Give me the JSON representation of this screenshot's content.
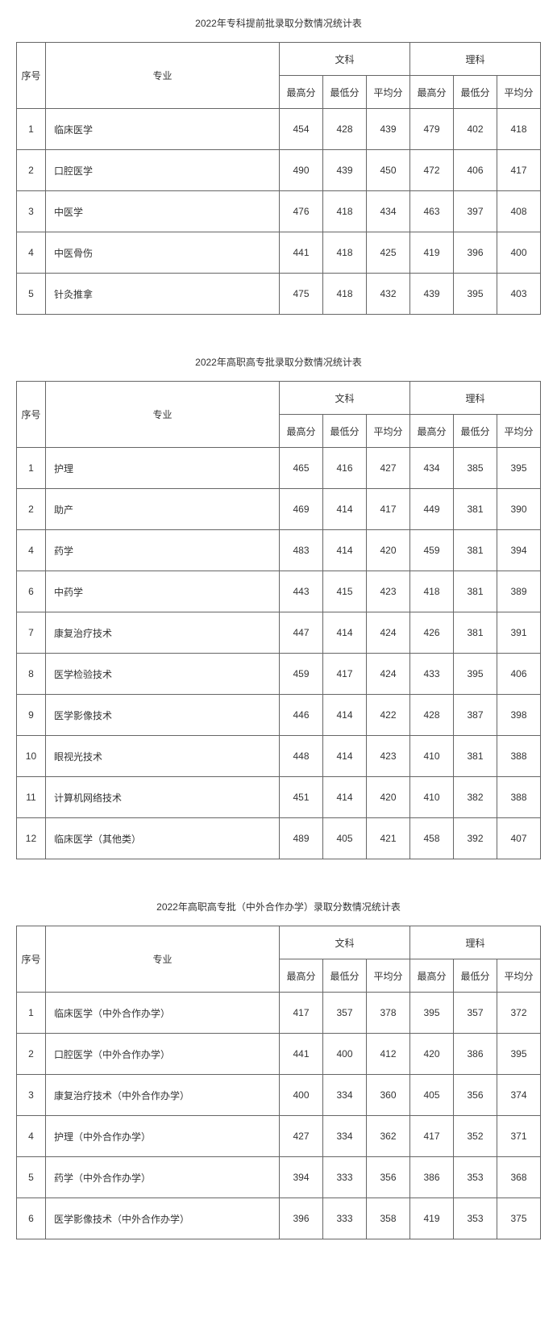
{
  "tables": [
    {
      "title": "2022年专科提前批录取分数情况统计表",
      "header": {
        "idx": "序号",
        "major": "专业",
        "group1": "文科",
        "group2": "理科",
        "sub": [
          "最高分",
          "最低分",
          "平均分",
          "最高分",
          "最低分",
          "平均分"
        ]
      },
      "rows": [
        {
          "idx": "1",
          "major": "临床医学",
          "v": [
            "454",
            "428",
            "439",
            "479",
            "402",
            "418"
          ]
        },
        {
          "idx": "2",
          "major": "口腔医学",
          "v": [
            "490",
            "439",
            "450",
            "472",
            "406",
            "417"
          ]
        },
        {
          "idx": "3",
          "major": "中医学",
          "v": [
            "476",
            "418",
            "434",
            "463",
            "397",
            "408"
          ]
        },
        {
          "idx": "4",
          "major": "中医骨伤",
          "v": [
            "441",
            "418",
            "425",
            "419",
            "396",
            "400"
          ]
        },
        {
          "idx": "5",
          "major": "针灸推拿",
          "v": [
            "475",
            "418",
            "432",
            "439",
            "395",
            "403"
          ]
        }
      ]
    },
    {
      "title": "2022年高职高专批录取分数情况统计表",
      "header": {
        "idx": "序号",
        "major": "专业",
        "group1": "文科",
        "group2": "理科",
        "sub": [
          "最高分",
          "最低分",
          "平均分",
          "最高分",
          "最低分",
          "平均分"
        ]
      },
      "rows": [
        {
          "idx": "1",
          "major": "护理",
          "v": [
            "465",
            "416",
            "427",
            "434",
            "385",
            "395"
          ]
        },
        {
          "idx": "2",
          "major": "助产",
          "v": [
            "469",
            "414",
            "417",
            "449",
            "381",
            "390"
          ]
        },
        {
          "idx": "4",
          "major": "药学",
          "v": [
            "483",
            "414",
            "420",
            "459",
            "381",
            "394"
          ]
        },
        {
          "idx": "6",
          "major": "中药学",
          "v": [
            "443",
            "415",
            "423",
            "418",
            "381",
            "389"
          ]
        },
        {
          "idx": "7",
          "major": "康复治疗技术",
          "v": [
            "447",
            "414",
            "424",
            "426",
            "381",
            "391"
          ]
        },
        {
          "idx": "8",
          "major": "医学检验技术",
          "v": [
            "459",
            "417",
            "424",
            "433",
            "395",
            "406"
          ]
        },
        {
          "idx": "9",
          "major": "医学影像技术",
          "v": [
            "446",
            "414",
            "422",
            "428",
            "387",
            "398"
          ]
        },
        {
          "idx": "10",
          "major": "眼视光技术",
          "v": [
            "448",
            "414",
            "423",
            "410",
            "381",
            "388"
          ]
        },
        {
          "idx": "11",
          "major": "计算机网络技术",
          "v": [
            "451",
            "414",
            "420",
            "410",
            "382",
            "388"
          ]
        },
        {
          "idx": "12",
          "major": "临床医学（其他类）",
          "v": [
            "489",
            "405",
            "421",
            "458",
            "392",
            "407"
          ]
        }
      ]
    },
    {
      "title": "2022年高职高专批（中外合作办学）录取分数情况统计表",
      "header": {
        "idx": "序号",
        "major": "专业",
        "group1": "文科",
        "group2": "理科",
        "sub": [
          "最高分",
          "最低分",
          "平均分",
          "最高分",
          "最低分",
          "平均分"
        ]
      },
      "rows": [
        {
          "idx": "1",
          "major": "临床医学（中外合作办学）",
          "v": [
            "417",
            "357",
            "378",
            "395",
            "357",
            "372"
          ]
        },
        {
          "idx": "2",
          "major": "口腔医学（中外合作办学）",
          "v": [
            "441",
            "400",
            "412",
            "420",
            "386",
            "395"
          ]
        },
        {
          "idx": "3",
          "major": "康复治疗技术（中外合作办学）",
          "v": [
            "400",
            "334",
            "360",
            "405",
            "356",
            "374"
          ]
        },
        {
          "idx": "4",
          "major": "护理（中外合作办学）",
          "v": [
            "427",
            "334",
            "362",
            "417",
            "352",
            "371"
          ]
        },
        {
          "idx": "5",
          "major": "药学（中外合作办学）",
          "v": [
            "394",
            "333",
            "356",
            "386",
            "353",
            "368"
          ]
        },
        {
          "idx": "6",
          "major": "医学影像技术（中外合作办学）",
          "v": [
            "396",
            "333",
            "358",
            "419",
            "353",
            "375"
          ]
        }
      ]
    }
  ]
}
